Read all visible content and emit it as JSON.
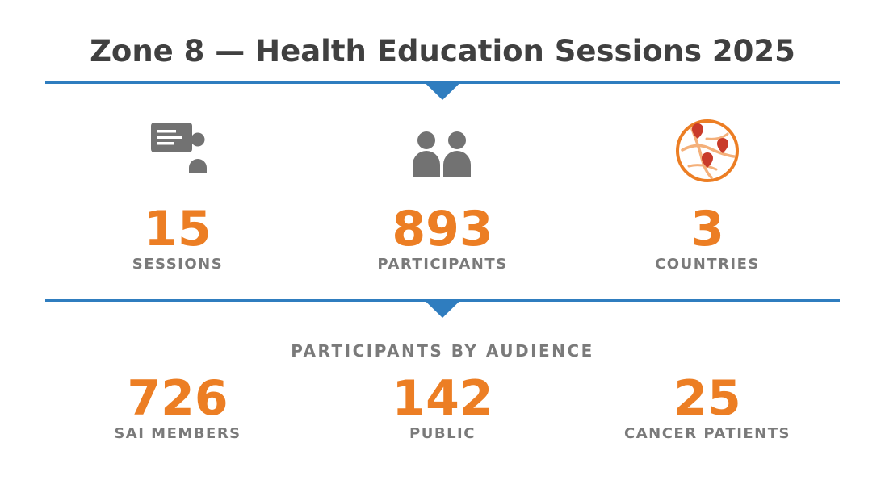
{
  "title": "Zone 8 — Health Education Sessions 2025",
  "colors": {
    "accent": "#EC7E24",
    "divider": "#2F7DBF",
    "title_text": "#404040",
    "label_text": "#7a7a7a",
    "icon_gray": "#727272",
    "map_pin": "#C93B2A"
  },
  "summary": [
    {
      "icon": "presentation-icon",
      "value": "15",
      "label": "SESSIONS"
    },
    {
      "icon": "people-icon",
      "value": "893",
      "label": "PARTICIPANTS"
    },
    {
      "icon": "map-pins-icon",
      "value": "3",
      "label": "COUNTRIES"
    }
  ],
  "audience": {
    "heading": "PARTICIPANTS BY AUDIENCE",
    "items": [
      {
        "value": "726",
        "label": "SAI MEMBERS"
      },
      {
        "value": "142",
        "label": "PUBLIC"
      },
      {
        "value": "25",
        "label": "CANCER PATIENTS"
      }
    ]
  }
}
